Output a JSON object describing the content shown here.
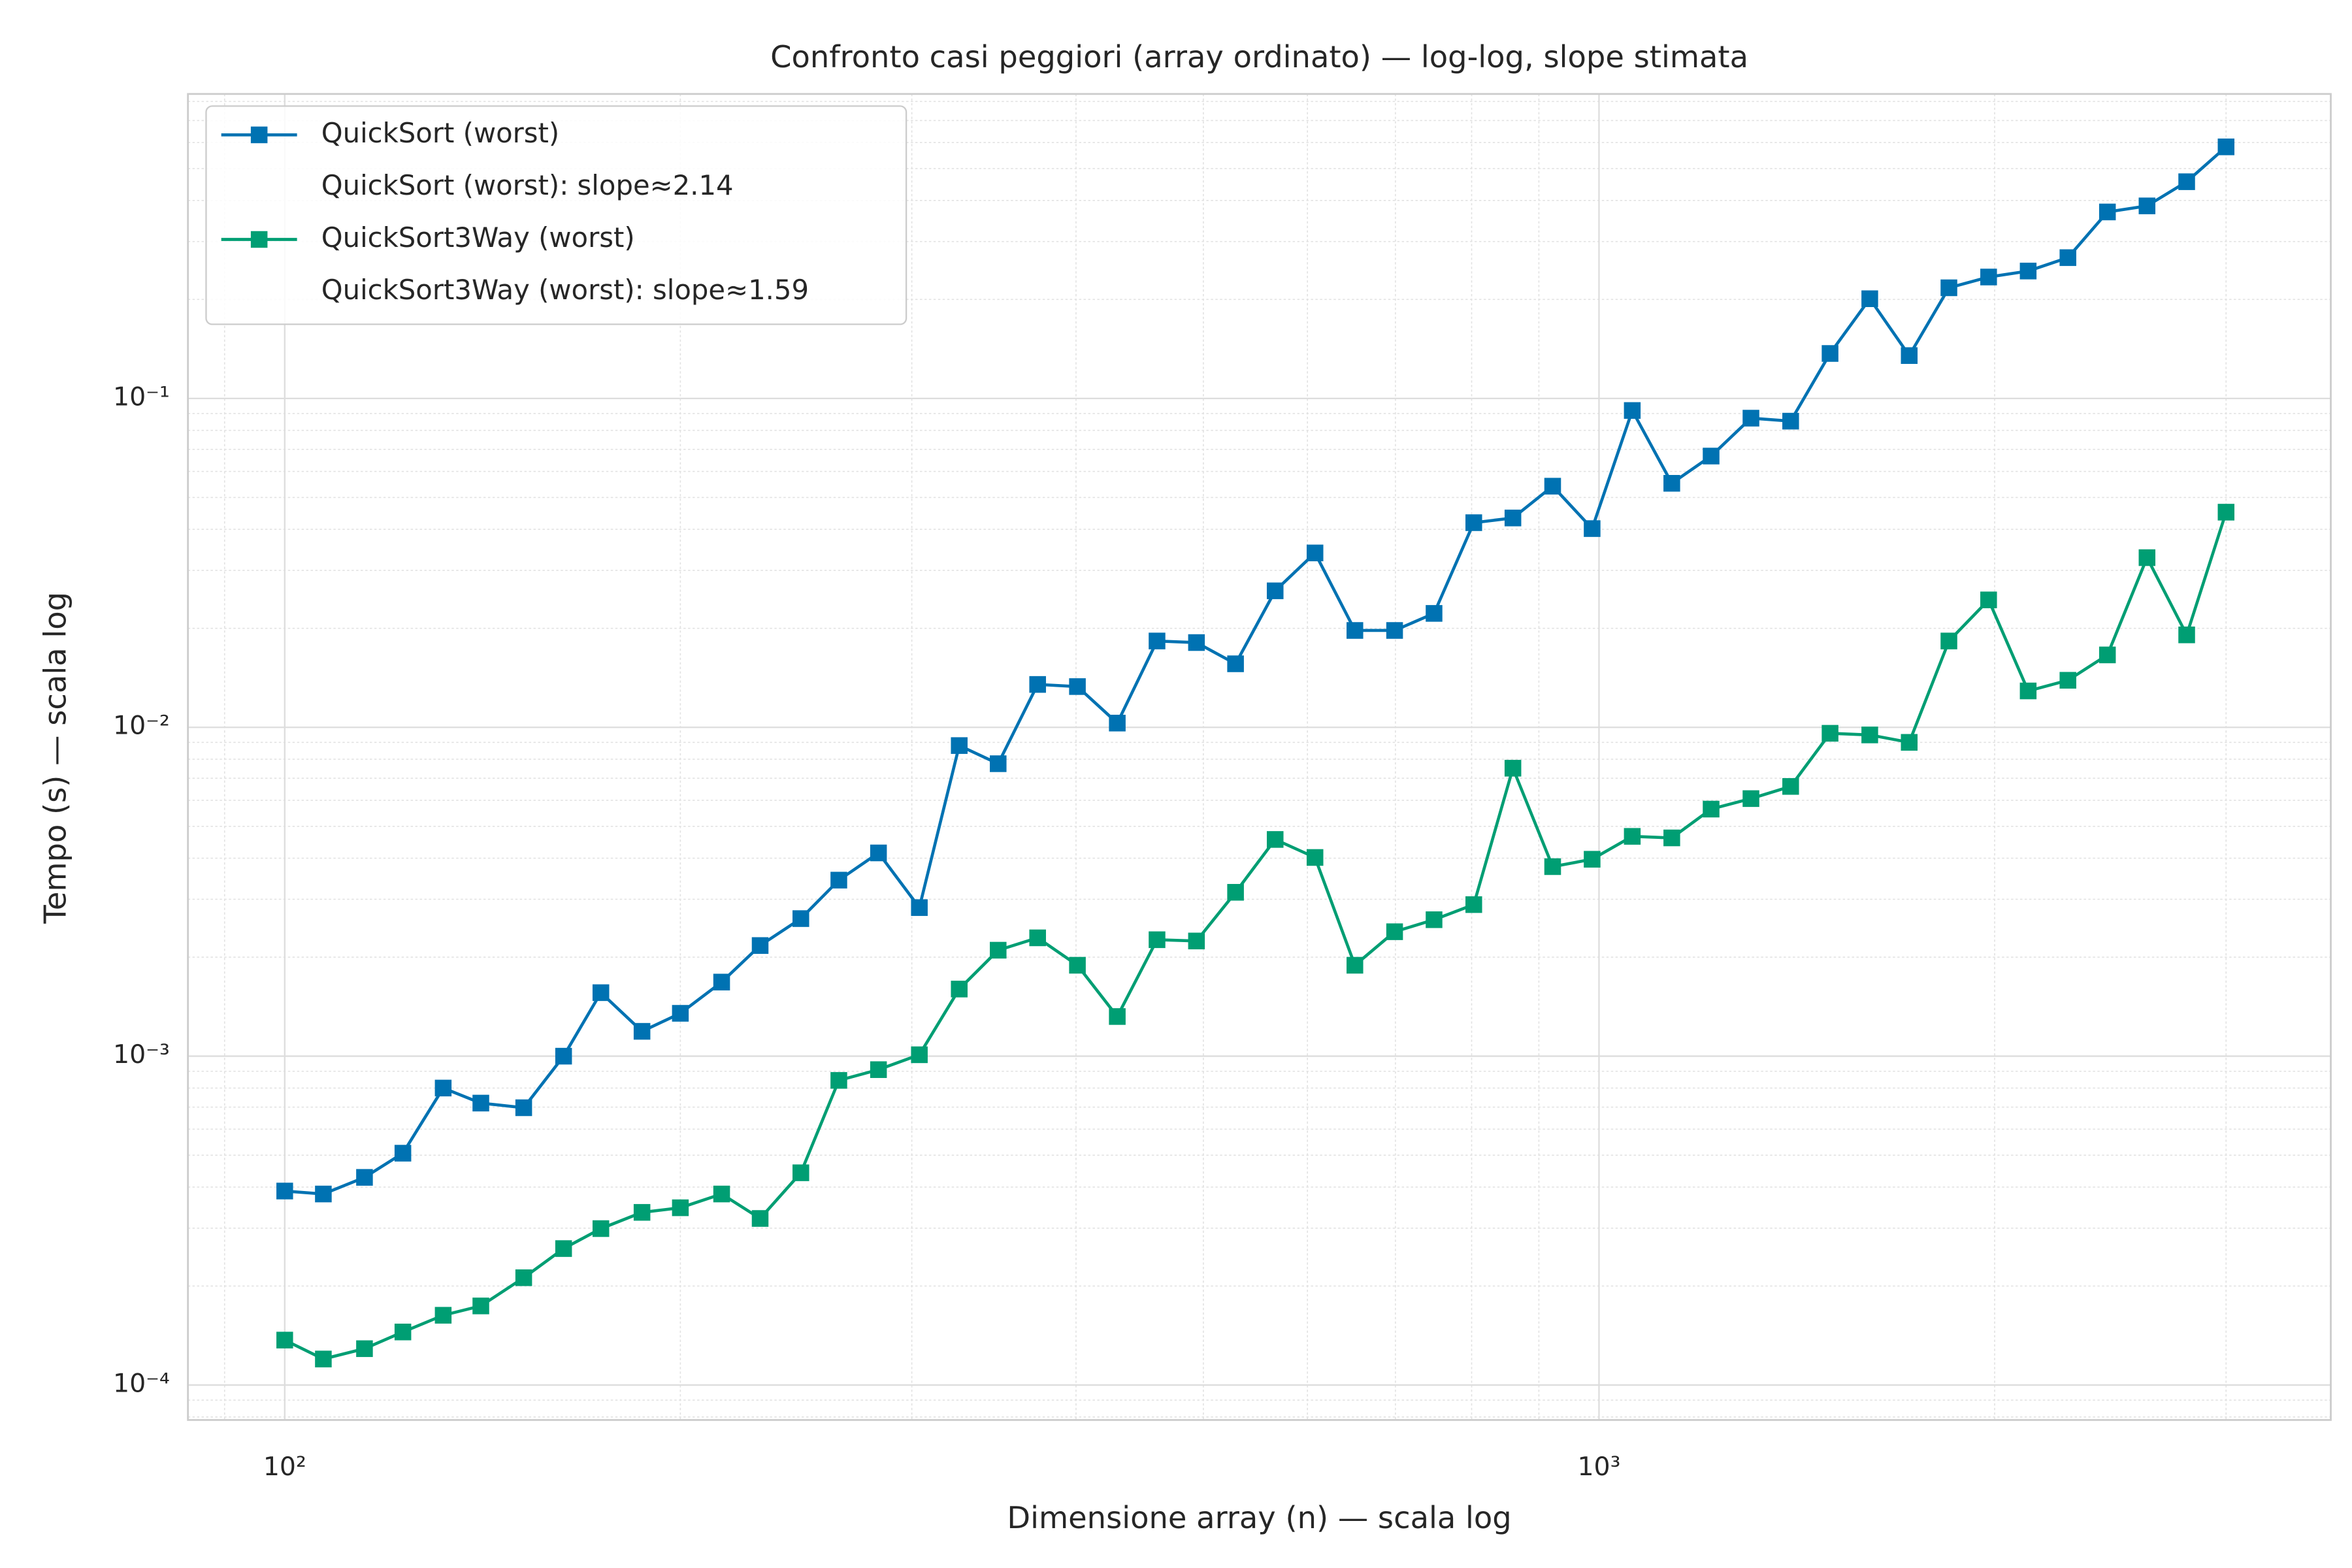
{
  "chart_data": {
    "type": "line",
    "title": "Confronto casi peggiori (array ordinato) — log-log, slope stimata",
    "x_label": "Dimensione array (n) — scala log",
    "y_label": "Tempo (s) — scala log",
    "log_x": true,
    "log_y": true,
    "grid": true,
    "minor_grid": true,
    "legend_position": "upper left",
    "x": [
      100,
      107,
      115,
      123,
      132,
      141,
      152,
      163,
      174,
      187,
      200,
      215,
      230,
      247,
      264,
      283,
      304,
      326,
      349,
      374,
      401,
      430,
      461,
      494,
      529,
      567,
      608,
      652,
      699,
      749,
      803,
      860,
      922,
      988,
      1060,
      1136,
      1217,
      1305,
      1399,
      1499,
      1607,
      1722,
      1846,
      1979,
      2121,
      2274,
      2437,
      2612,
      2800,
      3000
    ],
    "series": [
      {
        "name": "QuickSort (worst)",
        "legend_note": "QuickSort (worst): slope≈2.14",
        "color": "#0072b2",
        "marker": "square",
        "values": [
          0.000389,
          0.000381,
          0.000428,
          0.000507,
          0.0008,
          0.00072,
          0.000697,
          0.001,
          0.00156,
          0.00119,
          0.00135,
          0.00168,
          0.00217,
          0.00262,
          0.00343,
          0.00415,
          0.00283,
          0.0088,
          0.00775,
          0.0135,
          0.0133,
          0.0103,
          0.0183,
          0.0181,
          0.0156,
          0.026,
          0.0339,
          0.0197,
          0.0197,
          0.0222,
          0.0419,
          0.0433,
          0.0541,
          0.0402,
          0.0919,
          0.0552,
          0.0668,
          0.0871,
          0.0853,
          0.137,
          0.201,
          0.135,
          0.217,
          0.234,
          0.244,
          0.268,
          0.369,
          0.385,
          0.456,
          0.582
        ]
      },
      {
        "name": "QuickSort3Way (worst)",
        "legend_note": "QuickSort3Way (worst): slope≈1.59",
        "color": "#009e73",
        "marker": "square",
        "values": [
          0.000137,
          0.00012,
          0.000129,
          0.000145,
          0.000163,
          0.000174,
          0.000212,
          0.00026,
          0.000299,
          0.000335,
          0.000346,
          0.000381,
          0.000321,
          0.000442,
          0.000844,
          0.00091,
          0.00101,
          0.0016,
          0.0021,
          0.00229,
          0.00189,
          0.00132,
          0.00226,
          0.00224,
          0.00315,
          0.00456,
          0.00402,
          0.00189,
          0.00239,
          0.0026,
          0.00289,
          0.00751,
          0.00377,
          0.00397,
          0.00466,
          0.00461,
          0.00564,
          0.00607,
          0.00661,
          0.00959,
          0.00948,
          0.009,
          0.0183,
          0.0244,
          0.0129,
          0.0139,
          0.0166,
          0.0328,
          0.0191,
          0.0451
        ]
      }
    ],
    "xlim": [
      84.4,
      3604
    ],
    "ylim": [
      7.83e-05,
      0.843
    ],
    "xticks": [
      {
        "value": 100,
        "label": "10²"
      },
      {
        "value": 1000,
        "label": "10³"
      }
    ],
    "yticks": [
      {
        "value": 0.0001,
        "label": "10⁻⁴"
      },
      {
        "value": 0.001,
        "label": "10⁻³"
      },
      {
        "value": 0.01,
        "label": "10⁻²"
      },
      {
        "value": 0.1,
        "label": "10⁻¹"
      }
    ]
  }
}
